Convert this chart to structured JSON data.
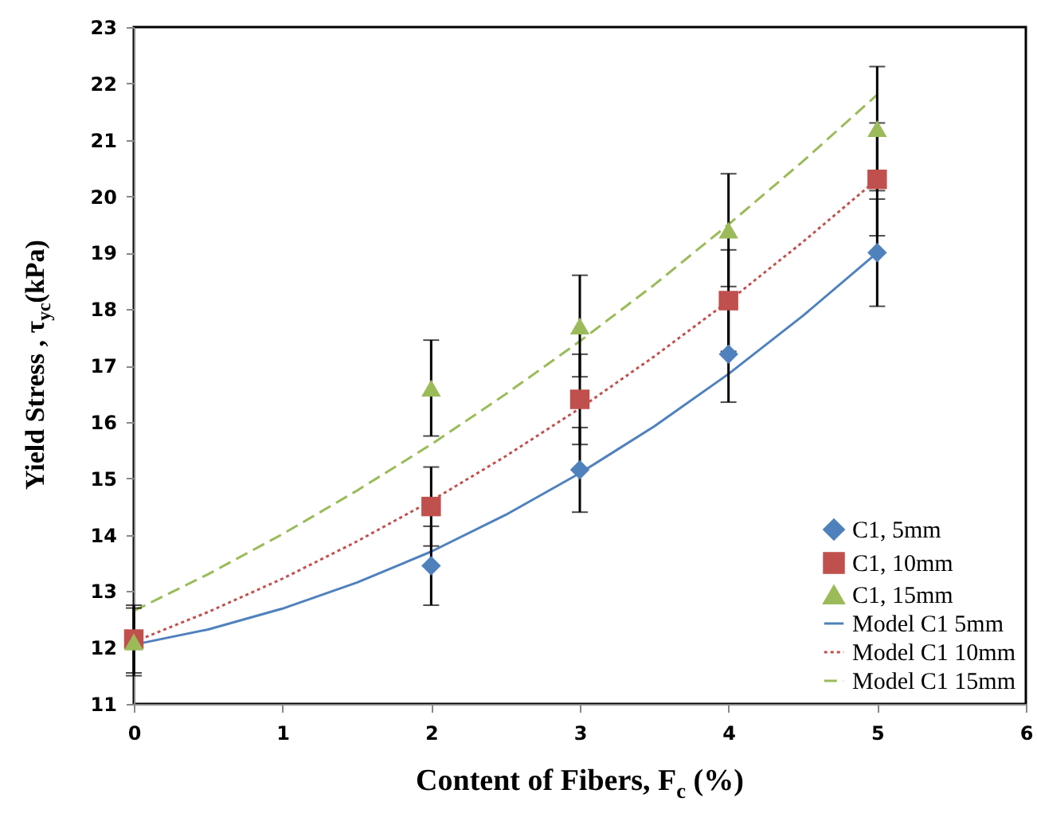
{
  "chart_data": {
    "type": "scatter",
    "xlabel": "Content  of Fibers, F$_{c}$ (%)",
    "ylabel": "Yield Stress , τ$_{yc}$(kPa)",
    "xlim": [
      0,
      6
    ],
    "xticks": [
      0,
      1,
      2,
      3,
      4,
      5,
      6
    ],
    "ylim": [
      11,
      23
    ],
    "yticks": [
      11,
      12,
      13,
      14,
      15,
      16,
      17,
      18,
      19,
      20,
      21,
      22,
      23
    ],
    "grid": false,
    "legend": "bottom right",
    "series": [
      {
        "name": "C1, 5mm",
        "type": "scatter",
        "marker": "diamond",
        "color": "#4f81bd",
        "x": [
          2,
          3,
          4,
          5
        ],
        "values": [
          13.45,
          15.15,
          17.2,
          19.0
        ],
        "errors": [
          0.7,
          0.75,
          0.85,
          0.95
        ]
      },
      {
        "name": "C1, 10mm",
        "type": "scatter",
        "marker": "square",
        "color": "#c0504d",
        "x": [
          0,
          2,
          3,
          4,
          5
        ],
        "values": [
          12.15,
          14.5,
          16.4,
          18.15,
          20.3
        ],
        "errors": [
          0.6,
          0.7,
          0.8,
          0.9,
          1.0
        ]
      },
      {
        "name": "C1, 15mm",
        "type": "scatter",
        "marker": "triangle",
        "color": "#9bbb59",
        "x": [
          0,
          2,
          3,
          4,
          5
        ],
        "values": [
          12.1,
          16.6,
          17.7,
          19.4,
          21.2
        ],
        "errors": [
          0.6,
          0.85,
          0.9,
          1.0,
          1.1
        ]
      },
      {
        "name": "Model C1 5mm",
        "type": "line",
        "line_style": "solid",
        "color": "#4f81bd",
        "x": [
          0,
          0.5,
          1,
          1.5,
          2,
          2.5,
          3,
          3.5,
          4,
          4.5,
          5
        ],
        "values": [
          12.05,
          12.32,
          12.69,
          13.15,
          13.7,
          14.35,
          15.09,
          15.92,
          16.85,
          17.88,
          19.0
        ]
      },
      {
        "name": "Model C1 10mm",
        "type": "line",
        "line_style": "dotted",
        "color": "#c0504d",
        "x": [
          0,
          0.5,
          1,
          1.5,
          2,
          2.5,
          3,
          3.5,
          4,
          4.5,
          5
        ],
        "values": [
          12.1,
          12.63,
          13.22,
          13.88,
          14.6,
          15.39,
          16.24,
          17.16,
          18.14,
          19.19,
          20.3
        ]
      },
      {
        "name": "Model C1 15mm",
        "type": "line",
        "line_style": "dashed",
        "color": "#9bbb59",
        "x": [
          0,
          0.5,
          1,
          1.5,
          2,
          2.5,
          3,
          3.5,
          4,
          4.5,
          5
        ],
        "values": [
          12.65,
          13.3,
          14.01,
          14.78,
          15.6,
          16.49,
          17.43,
          18.43,
          19.5,
          20.62,
          21.8
        ]
      }
    ]
  }
}
